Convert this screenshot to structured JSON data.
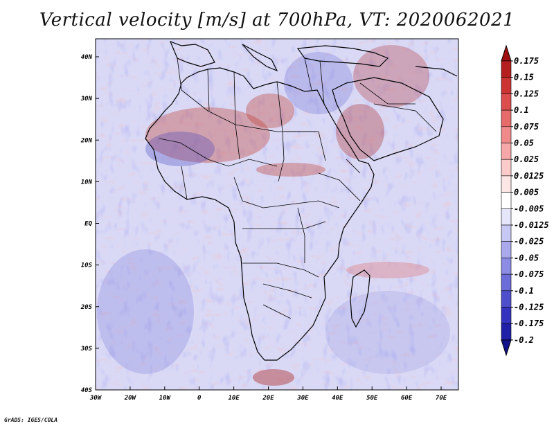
{
  "title": "Vertical velocity [m/s] at 700hPa, VT: 2020062021",
  "footer": "GrADS: IGES/COLA",
  "map": {
    "lon_range": [
      -30,
      75
    ],
    "lat_range": [
      -40,
      45
    ],
    "lat_ticks": [
      "40N",
      "30N",
      "20N",
      "10N",
      "EQ",
      "10S",
      "20S",
      "30S",
      "40S"
    ],
    "lon_ticks": [
      "30W",
      "20W",
      "10W",
      "0",
      "10E",
      "20E",
      "30E",
      "40E",
      "50E",
      "60E",
      "70E"
    ]
  },
  "colorbar": {
    "labels": [
      "0.175",
      "0.15",
      "0.125",
      "0.1",
      "0.075",
      "0.05",
      "0.025",
      "0.0125",
      "0.005",
      "-0.005",
      "-0.0125",
      "-0.025",
      "-0.05",
      "-0.075",
      "-0.1",
      "-0.125",
      "-0.175",
      "-0.2"
    ],
    "colors": [
      "#9e0f0f",
      "#b51f1f",
      "#cc3333",
      "#dd4d4d",
      "#e86b6b",
      "#f08a8a",
      "#f6a8a8",
      "#fbcaca",
      "#fde6e6",
      "#ffffff",
      "#e6e6fb",
      "#c8c8f4",
      "#a9a9ec",
      "#8c8ce4",
      "#6d6dd9",
      "#4f4fcd",
      "#3333c0",
      "#1f1fa8",
      "#12128a"
    ]
  }
}
